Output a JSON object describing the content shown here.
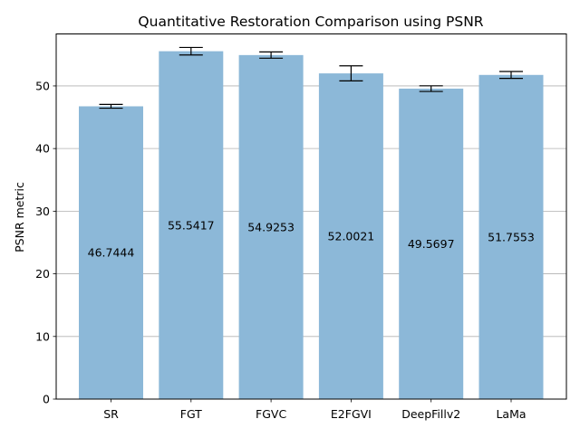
{
  "chart_data": {
    "type": "bar",
    "title": "Quantitative Restoration Comparison using PSNR",
    "xlabel": "",
    "ylabel": "PSNR metric",
    "categories": [
      "SR",
      "FGT",
      "FGVC",
      "E2FGVI",
      "DeepFillv2",
      "LaMa"
    ],
    "values": [
      46.7444,
      55.5417,
      54.9253,
      52.0021,
      49.5697,
      51.7553
    ],
    "value_labels": [
      "46.7444",
      "55.5417",
      "54.9253",
      "52.0021",
      "49.5697",
      "51.7553"
    ],
    "errors": [
      0.3,
      0.6,
      0.5,
      1.2,
      0.45,
      0.55
    ],
    "ylim": [
      0,
      58.3
    ],
    "yticks": [
      0,
      10,
      20,
      30,
      40,
      50
    ],
    "ytick_labels": [
      "0",
      "10",
      "20",
      "30",
      "40",
      "50"
    ],
    "grid": "y-axis major gridlines",
    "bar_color": "#8cb8d8",
    "grid_color": "#b0b0b0"
  }
}
